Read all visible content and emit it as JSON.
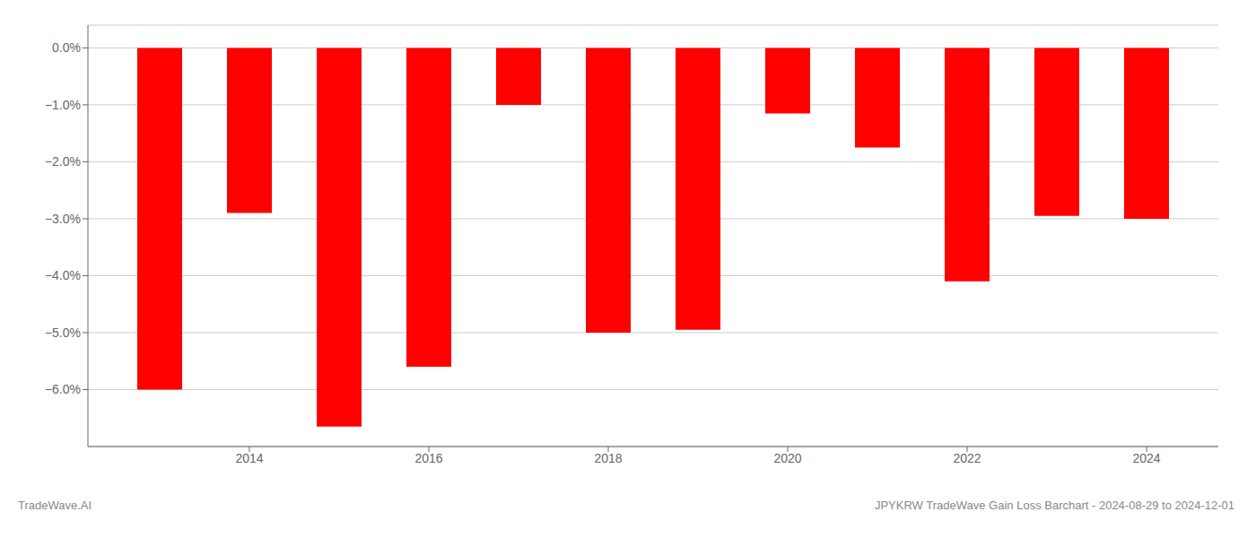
{
  "chart_data": {
    "type": "bar",
    "title": "JPYKRW TradeWave Gain Loss Barchart - 2024-08-29 to 2024-12-01",
    "annotations": [
      "TradeWave.AI"
    ],
    "x": [
      2013,
      2014,
      2015,
      2016,
      2017,
      2018,
      2019,
      2020,
      2021,
      2022,
      2023,
      2024
    ],
    "values": [
      -6.0,
      -2.9,
      -6.65,
      -5.6,
      -1.0,
      -5.0,
      -4.95,
      -1.15,
      -1.75,
      -4.1,
      -2.95,
      -3.0
    ],
    "color": "#ff0000",
    "xlim": [
      2012.2,
      2024.8
    ],
    "xticks": [
      2014,
      2016,
      2018,
      2020,
      2022,
      2024
    ],
    "ylim": [
      -7.0,
      0.4
    ],
    "yticks": [
      {
        "value": 0.0,
        "label": "0.0%"
      },
      {
        "value": -1.0,
        "label": "−1.0%"
      },
      {
        "value": -2.0,
        "label": "−2.0%"
      },
      {
        "value": -3.0,
        "label": "−3.0%"
      },
      {
        "value": -4.0,
        "label": "−4.0%"
      },
      {
        "value": -5.0,
        "label": "−5.0%"
      },
      {
        "value": -6.0,
        "label": "−6.0%"
      }
    ],
    "grid": true
  }
}
